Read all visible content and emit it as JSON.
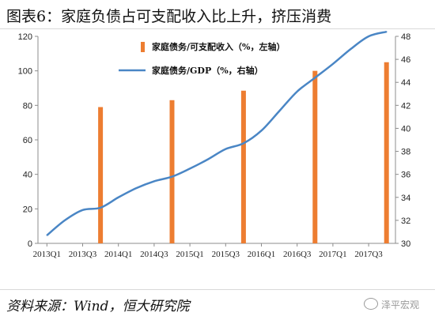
{
  "title": "图表6：家庭负债占可支配收入比上升，挤压消费",
  "source": "资料来源：Wind，恒大研究院",
  "watermark": "泽平宏观",
  "colors": {
    "bar": "#ED7D31",
    "line": "#4A86C5"
  },
  "chart_data": {
    "type": "bar+line",
    "categories": [
      "2013Q1",
      "2013Q2",
      "2013Q3",
      "2013Q4",
      "2014Q1",
      "2014Q2",
      "2014Q3",
      "2014Q4",
      "2015Q1",
      "2015Q2",
      "2015Q3",
      "2015Q4",
      "2016Q1",
      "2016Q2",
      "2016Q3",
      "2016Q4",
      "2017Q1",
      "2017Q2",
      "2017Q3",
      "2017Q4"
    ],
    "x_tick_labels": [
      "2013Q1",
      "2013Q3",
      "2014Q1",
      "2014Q3",
      "2015Q1",
      "2015Q3",
      "2016Q1",
      "2016Q3",
      "2017Q1",
      "2017Q3"
    ],
    "left_axis": {
      "min": 0,
      "max": 120,
      "step": 20,
      "ticks": [
        "0",
        "20",
        "40",
        "60",
        "80",
        "100",
        "120"
      ]
    },
    "right_axis": {
      "min": 30,
      "max": 48,
      "step": 2,
      "ticks": [
        "30",
        "32",
        "34",
        "36",
        "38",
        "40",
        "42",
        "44",
        "46",
        "48"
      ]
    },
    "series": [
      {
        "name": "家庭债务/可支配收入（%，左轴）",
        "type": "bar",
        "axis": "left",
        "points": [
          {
            "x": "2013Q4",
            "y": 79
          },
          {
            "x": "2014Q4",
            "y": 83
          },
          {
            "x": "2015Q4",
            "y": 88.5
          },
          {
            "x": "2016Q4",
            "y": 100
          },
          {
            "x": "2017Q4",
            "y": 105
          }
        ]
      },
      {
        "name": "家庭债务/GDP（%，右轴）",
        "type": "line",
        "axis": "right",
        "values": [
          30.7,
          32.0,
          32.9,
          33.1,
          34.0,
          34.8,
          35.4,
          35.8,
          36.5,
          37.3,
          38.2,
          38.7,
          39.8,
          41.5,
          43.2,
          44.4,
          45.6,
          46.9,
          48.0,
          48.4
        ]
      }
    ],
    "legend": "top-center"
  }
}
